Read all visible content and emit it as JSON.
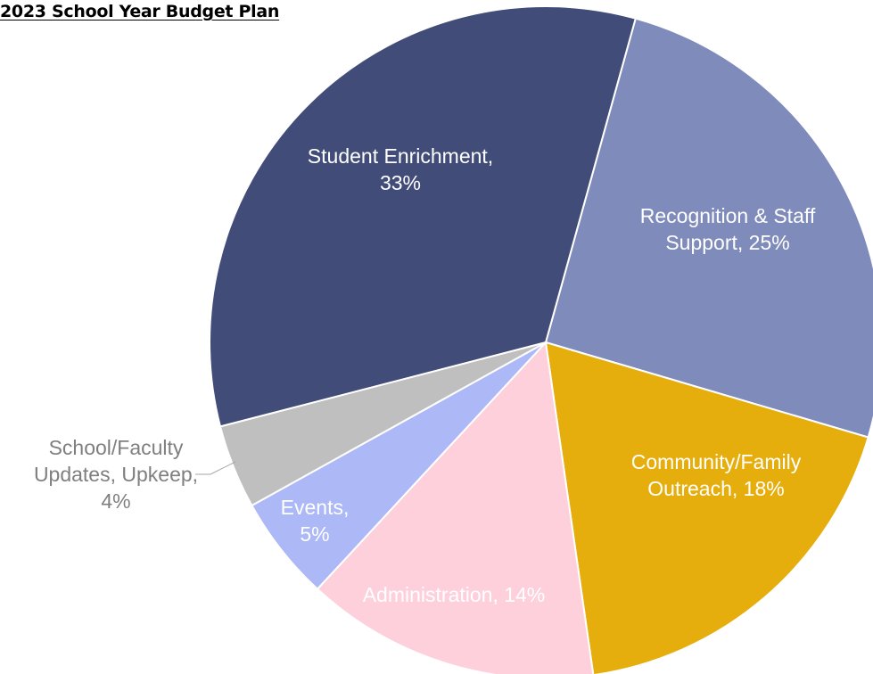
{
  "chart_data": {
    "type": "pie",
    "title": "2023 School Year Budget Plan",
    "slices": [
      {
        "name": "Recognition & Staff Support",
        "value": 25,
        "label_lines": [
          "Recognition & Staff",
          "Support, 25%"
        ],
        "color": "#7f8bbb",
        "label_color": "#ffffff"
      },
      {
        "name": "Community/Family Outreach",
        "value": 18,
        "label_lines": [
          "Community/Family",
          "Outreach, 18%"
        ],
        "color": "#e6ae0c",
        "label_color": "#ffffff"
      },
      {
        "name": "Administration",
        "value": 14,
        "label_lines": [
          "Administration, 14%"
        ],
        "color": "#fdd0dc",
        "label_color": "#ffffff"
      },
      {
        "name": "Events",
        "value": 5,
        "label_lines": [
          "Events,",
          "5%"
        ],
        "color": "#adb8f7",
        "label_color": "#ffffff"
      },
      {
        "name": "School/Faculty Updates, Upkeep",
        "value": 4,
        "label_lines": [
          "School/Faculty",
          "Updates, Upkeep,",
          "4%"
        ],
        "color": "#bfbfbf",
        "label_color": "#7f7f7f"
      },
      {
        "name": "Student Enrichment",
        "value": 33,
        "label_lines": [
          "Student Enrichment,",
          "33%"
        ],
        "color": "#424c78",
        "label_color": "#ffffff"
      }
    ],
    "legend": "none",
    "data_labels": "category-and-percent"
  }
}
